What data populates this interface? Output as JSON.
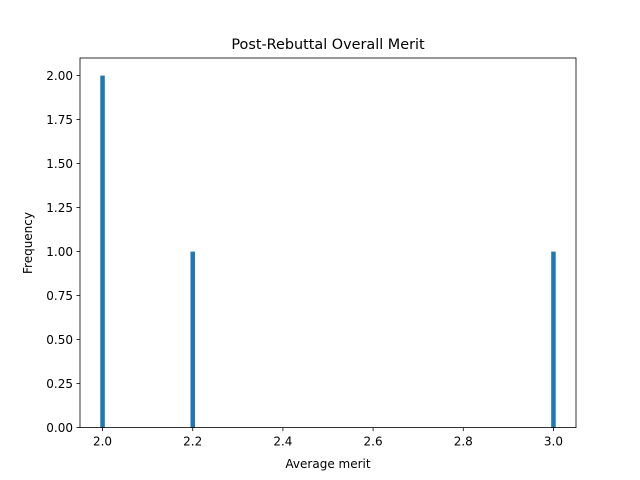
{
  "chart_data": {
    "type": "bar",
    "title": "Post-Rebuttal Overall Merit",
    "xlabel": "Average merit",
    "ylabel": "Frequency",
    "bars": [
      {
        "x": 2.0,
        "value": 2
      },
      {
        "x": 2.2,
        "value": 1
      },
      {
        "x": 3.0,
        "value": 1
      }
    ],
    "bar_width_data": 0.01,
    "xlim": [
      1.95,
      3.05
    ],
    "ylim": [
      0,
      2.1
    ],
    "xticks": [
      2.0,
      2.2,
      2.4,
      2.6,
      2.8,
      3.0
    ],
    "xtick_labels": [
      "2.0",
      "2.2",
      "2.4",
      "2.6",
      "2.8",
      "3.0"
    ],
    "yticks": [
      0,
      0.25,
      0.5,
      0.75,
      1.0,
      1.25,
      1.5,
      1.75,
      2.0
    ],
    "ytick_labels": [
      "0.00",
      "0.25",
      "0.50",
      "0.75",
      "1.00",
      "1.25",
      "1.50",
      "1.75",
      "2.00"
    ],
    "grid": false,
    "bar_color": "#1f77b4"
  }
}
